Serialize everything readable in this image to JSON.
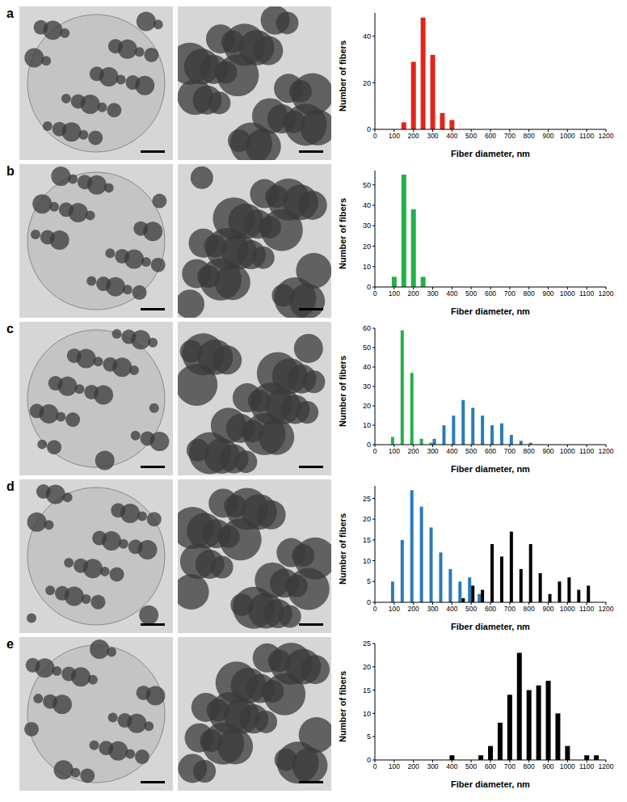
{
  "chart_data": [
    {
      "type": "bar",
      "title": "a",
      "xlabel": "Fiber diameter, nm",
      "ylabel": "Number of fibers",
      "x": [
        50,
        100,
        150,
        200,
        250,
        300,
        350,
        400,
        450,
        500,
        550,
        600,
        650,
        700,
        750,
        800,
        850,
        900,
        950,
        1000,
        1050,
        1100,
        1150,
        1200
      ],
      "series": [
        {
          "color": "#e3241b",
          "values": [
            null,
            null,
            3,
            29,
            48,
            32,
            7,
            4,
            null,
            null,
            null,
            null,
            null,
            null,
            null,
            null,
            null,
            null,
            null,
            null,
            null,
            null,
            null,
            null
          ]
        }
      ],
      "xlim": [
        0,
        1200
      ],
      "xticks": [
        0,
        100,
        200,
        300,
        400,
        500,
        600,
        700,
        800,
        900,
        1000,
        1100,
        1200
      ],
      "ylim": [
        0,
        50
      ],
      "yticks": [
        0,
        20,
        40
      ]
    },
    {
      "type": "bar",
      "title": "b",
      "xlabel": "Fiber diameter, nm",
      "ylabel": "Number of fibers",
      "x": [
        50,
        100,
        150,
        200,
        250,
        300,
        350,
        400,
        450,
        500,
        550,
        600,
        650,
        700,
        750,
        800,
        850,
        900,
        950,
        1000,
        1050,
        1100,
        1150,
        1200
      ],
      "series": [
        {
          "color": "#23b04b",
          "values": [
            null,
            5,
            55,
            38,
            5,
            null,
            null,
            null,
            null,
            null,
            null,
            null,
            null,
            null,
            null,
            null,
            null,
            null,
            null,
            null,
            null,
            null,
            null,
            null
          ]
        }
      ],
      "xlim": [
        0,
        1200
      ],
      "xticks": [
        0,
        100,
        200,
        300,
        400,
        500,
        600,
        700,
        800,
        900,
        1000,
        1100,
        1200
      ],
      "ylim": [
        0,
        57
      ],
      "yticks": [
        0,
        10,
        20,
        30,
        40,
        50
      ]
    },
    {
      "type": "bar",
      "title": "c",
      "xlabel": "Fiber diameter, nm",
      "ylabel": "Number of fibers",
      "x": [
        50,
        100,
        150,
        200,
        250,
        300,
        350,
        400,
        450,
        500,
        550,
        600,
        650,
        700,
        750,
        800,
        850,
        900,
        950,
        1000,
        1050,
        1100,
        1150,
        1200
      ],
      "series": [
        {
          "color": "#23b04b",
          "values": [
            null,
            4,
            59,
            37,
            3,
            1,
            null,
            null,
            null,
            null,
            null,
            null,
            null,
            null,
            null,
            null,
            null,
            null,
            null,
            null,
            null,
            null,
            null,
            null
          ]
        },
        {
          "color": "#2b7bba",
          "values": [
            null,
            null,
            null,
            null,
            null,
            3,
            10,
            15,
            23,
            19,
            15,
            10,
            11,
            5,
            2,
            1,
            null,
            null,
            null,
            null,
            null,
            null,
            null,
            null
          ]
        }
      ],
      "xlim": [
        0,
        1200
      ],
      "xticks": [
        0,
        100,
        200,
        300,
        400,
        500,
        600,
        700,
        800,
        900,
        1000,
        1100,
        1200
      ],
      "ylim": [
        0,
        60
      ],
      "yticks": [
        0,
        10,
        20,
        30,
        40,
        50,
        60
      ]
    },
    {
      "type": "bar",
      "title": "d",
      "xlabel": "Fiber diameter, nm",
      "ylabel": "Number of fibers",
      "x": [
        50,
        100,
        150,
        200,
        250,
        300,
        350,
        400,
        450,
        500,
        550,
        600,
        650,
        700,
        750,
        800,
        850,
        900,
        950,
        1000,
        1050,
        1100,
        1150,
        1200
      ],
      "series": [
        {
          "color": "#2b7bba",
          "values": [
            null,
            5,
            15,
            27,
            23,
            18,
            12,
            8,
            5,
            6,
            2,
            null,
            null,
            null,
            null,
            null,
            null,
            null,
            null,
            null,
            null,
            null,
            null,
            null
          ]
        },
        {
          "color": "#000000",
          "values": [
            null,
            null,
            null,
            null,
            null,
            null,
            null,
            null,
            1,
            4,
            3,
            14,
            11,
            17,
            8,
            14,
            7,
            2,
            5,
            6,
            3,
            4,
            null,
            null
          ]
        }
      ],
      "xlim": [
        0,
        1200
      ],
      "xticks": [
        0,
        100,
        200,
        300,
        400,
        500,
        600,
        700,
        800,
        900,
        1000,
        1100,
        1200
      ],
      "ylim": [
        0,
        28
      ],
      "yticks": [
        0,
        5,
        10,
        15,
        20,
        25
      ]
    },
    {
      "type": "bar",
      "title": "e",
      "xlabel": "Fiber diameter, nm",
      "ylabel": "Number of fibers",
      "x": [
        50,
        100,
        150,
        200,
        250,
        300,
        350,
        400,
        450,
        500,
        550,
        600,
        650,
        700,
        750,
        800,
        850,
        900,
        950,
        1000,
        1050,
        1100,
        1150,
        1200
      ],
      "series": [
        {
          "color": "#000000",
          "values": [
            null,
            null,
            null,
            null,
            null,
            null,
            null,
            1,
            null,
            null,
            1,
            3,
            8,
            14,
            23,
            15,
            16,
            17,
            10,
            3,
            null,
            1,
            1,
            null
          ]
        }
      ],
      "xlim": [
        0,
        1200
      ],
      "xticks": [
        0,
        100,
        200,
        300,
        400,
        500,
        600,
        700,
        800,
        900,
        1000,
        1100,
        1200
      ],
      "ylim": [
        0,
        25
      ],
      "yticks": [
        0,
        5,
        10,
        15,
        20,
        25
      ]
    }
  ]
}
